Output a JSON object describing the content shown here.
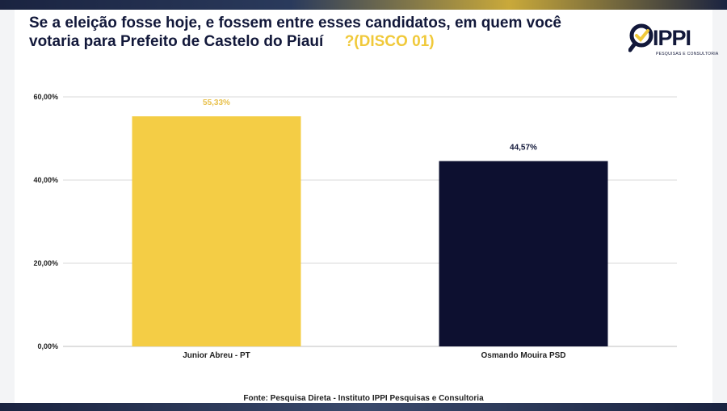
{
  "title": {
    "main": "Se a eleição fosse hoje, e fossem entre esses candidatos, em quem você votaria para Prefeito de  Castelo do Piauí",
    "accent": "?(DISCO 01)"
  },
  "logo": {
    "text": "IPPI",
    "subtitle": "PESQUISAS E CONSULTORIA"
  },
  "source": "Fonte: Pesquisa Direta - Instituto IPPI Pesquisas e Consultoria",
  "colors": {
    "yellow": "#f4cd45",
    "navy": "#0d1030",
    "grid": "#d9d9d9"
  },
  "chart_data": {
    "type": "bar",
    "title": "",
    "xlabel": "",
    "ylabel": "",
    "categories": [
      "Junior Abreu - PT",
      "Osmando Mouira PSD"
    ],
    "values": [
      55.33,
      44.57
    ],
    "value_labels": [
      "55,33%",
      "44,57%"
    ],
    "label_colors": [
      "#e8c04a",
      "#12183a"
    ],
    "bar_colors": [
      "#f4cd45",
      "#0d1030"
    ],
    "ylim": [
      0,
      60
    ],
    "yticks": [
      0,
      20,
      40,
      60
    ],
    "ytick_labels": [
      "0,00%",
      "20,00%",
      "40,00%",
      "60,00%"
    ],
    "grid": true,
    "legend": "none"
  }
}
